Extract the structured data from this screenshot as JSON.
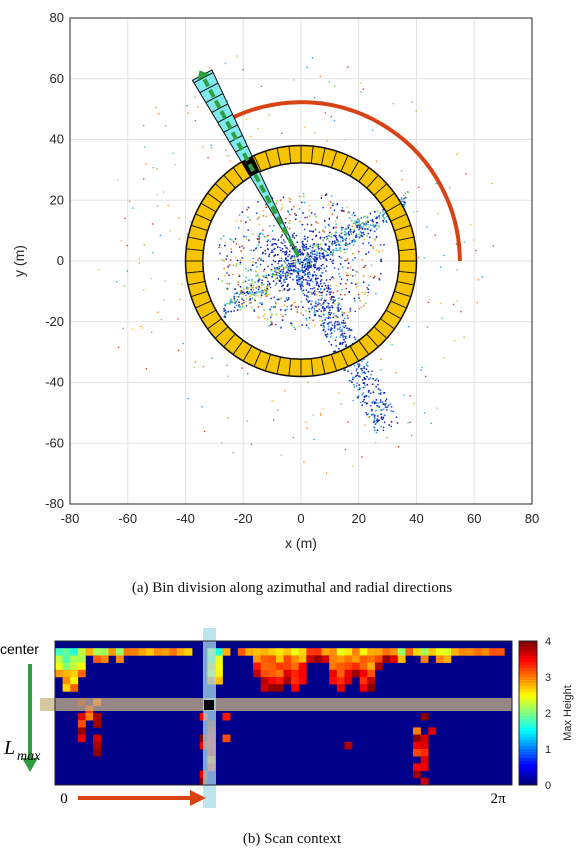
{
  "top_plot": {
    "xlabel": "x (m)",
    "ylabel": "y (m)",
    "caption": "(a) Bin division along azimuthal and radial directions",
    "x_ticks": [
      "-80",
      "-60",
      "-40",
      "-20",
      "0",
      "20",
      "40",
      "60",
      "80"
    ],
    "y_ticks": [
      "80",
      "60",
      "40",
      "20",
      "0",
      "-20",
      "-40",
      "-60",
      "-80"
    ]
  },
  "bottom_plot": {
    "caption": "(b) Scan context",
    "label_center": "center",
    "label_lmax": "L",
    "label_lmax_sub": "max",
    "label_zero": "0",
    "label_2pi": "2π",
    "colorbar_label": "Max Height",
    "colorbar_ticks": [
      "4",
      "3",
      "2",
      "1",
      "0"
    ]
  },
  "chart_data": [
    {
      "type": "scatter",
      "xlabel": "x (m)",
      "ylabel": "y (m)",
      "xlim": [
        -80,
        80
      ],
      "ylim": [
        -80,
        80
      ],
      "grid": true,
      "ring_inner_radius": 34,
      "ring_outer_radius": 40,
      "ring_sectors": 60,
      "colors": {
        "ring": "#f7c500",
        "arc": "#d84315",
        "beam": "#7fe9f0",
        "arrow": "#2e9e3f",
        "bin": "#000000"
      }
    },
    {
      "type": "heatmap",
      "rows": 20,
      "cols": 60,
      "colorbar_range": [
        0,
        4
      ],
      "colorbar_label": "Max Height",
      "colors": {
        "background": "#00008b",
        "row_highlight": "#c8b484",
        "col_highlight": "#a6dce8"
      }
    }
  ]
}
